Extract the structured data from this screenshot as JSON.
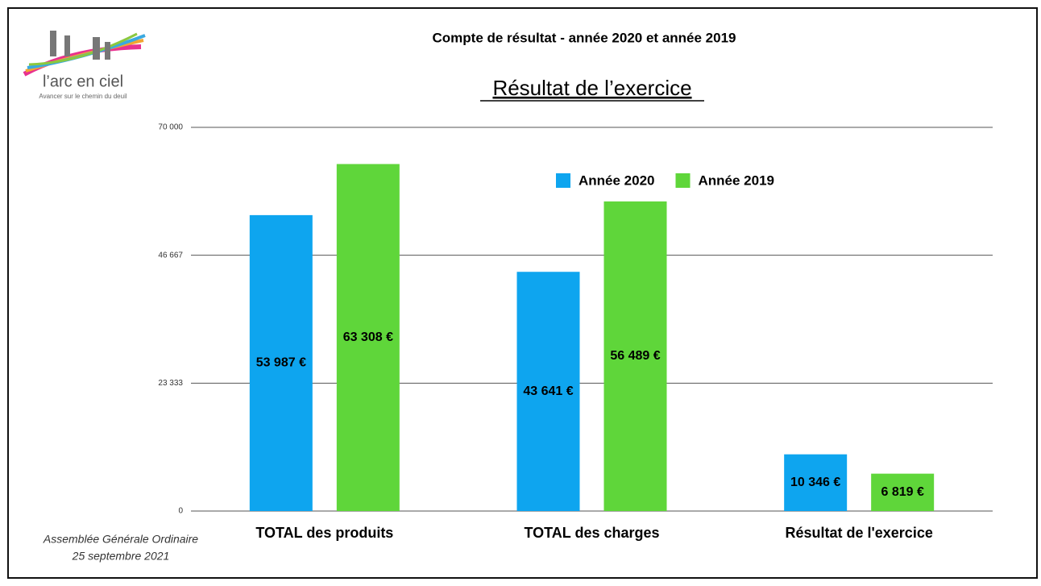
{
  "header": {
    "logo_name": "l’arc en ciel",
    "logo_tagline": "Avancer sur le chemin du deuil",
    "heading": "Compte de résultat - année 2020 et année 2019"
  },
  "footer": {
    "line1": "Assemblée Générale Ordinaire",
    "line2": "25 septembre 2021"
  },
  "chart_data": {
    "type": "bar",
    "title": "Résultat de l’exercice",
    "categories": [
      "TOTAL des produits",
      "TOTAL des charges",
      "Résultat de l'exercice"
    ],
    "series": [
      {
        "name": "Année 2020",
        "color": "#0ea5ef",
        "values": [
          53987,
          43641,
          10346
        ],
        "value_labels": [
          "53 987 €",
          "43 641 €",
          "10 346 €"
        ]
      },
      {
        "name": "Année 2019",
        "color": "#5fd63a",
        "values": [
          63308,
          56489,
          6819
        ],
        "value_labels": [
          "63 308 €",
          "56 489 €",
          "6 819 €"
        ]
      }
    ],
    "ylim": [
      0,
      70000
    ],
    "yticks": [
      0,
      {
        "value": 23333,
        "label": "23 333"
      },
      {
        "value": 46667,
        "label": "46 667"
      },
      {
        "value": 70000,
        "label": "70 000"
      }
    ],
    "grid": true,
    "legend": "top"
  }
}
